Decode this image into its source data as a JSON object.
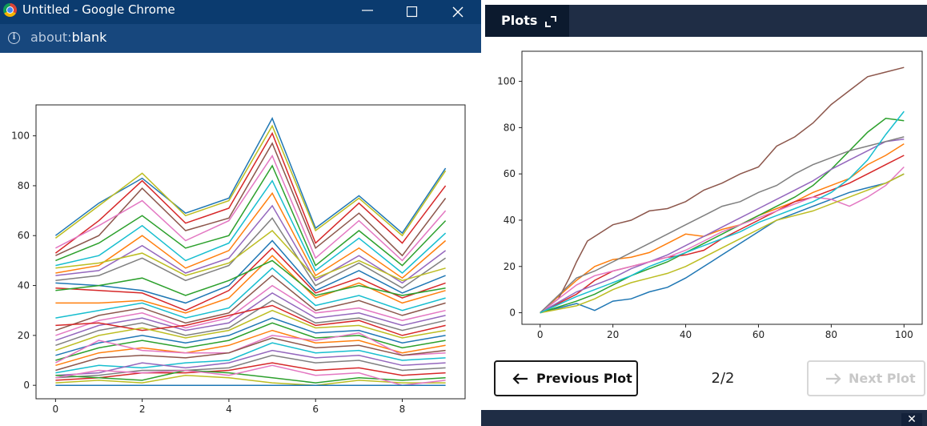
{
  "browser": {
    "window_title": "Untitled - Google Chrome",
    "url_scheme": "about:",
    "url_path": "blank"
  },
  "plots_pane": {
    "tab_label": "Plots",
    "prev_button_label": "Previous Plot",
    "next_button_label": "Next Plot",
    "pager": "2/2"
  },
  "chart_data": [
    {
      "type": "line",
      "title": "",
      "xlabel": "",
      "ylabel": "",
      "x": [
        0,
        1,
        2,
        3,
        4,
        5,
        6,
        7,
        8,
        9
      ],
      "xlim": [
        -0.45,
        9.45
      ],
      "ylim": [
        -5.4,
        112.4
      ],
      "xticks": [
        0,
        2,
        4,
        6,
        8
      ],
      "yticks": [
        0,
        20,
        40,
        60,
        80,
        100
      ],
      "grid": false,
      "legend": false,
      "series_count_note": "many overlapping series; representative subset captured",
      "series": [
        {
          "color": "#1f77b4",
          "values": [
            60,
            73,
            83,
            69,
            75,
            107,
            63,
            76,
            61,
            87
          ]
        },
        {
          "color": "#bcbd22",
          "values": [
            59,
            72,
            85,
            68,
            74,
            104,
            62,
            75,
            60,
            86
          ]
        },
        {
          "color": "#d62728",
          "values": [
            53,
            66,
            82,
            65,
            71,
            101,
            57,
            73,
            57,
            80
          ]
        },
        {
          "color": "#8c564b",
          "values": [
            52,
            60,
            79,
            62,
            67,
            97,
            55,
            69,
            52,
            75
          ]
        },
        {
          "color": "#e377c2",
          "values": [
            55,
            64,
            74,
            58,
            66,
            92,
            51,
            66,
            50,
            70
          ]
        },
        {
          "color": "#2ca02c",
          "values": [
            50,
            57,
            68,
            55,
            60,
            88,
            48,
            62,
            48,
            66
          ]
        },
        {
          "color": "#17becf",
          "values": [
            48,
            52,
            64,
            50,
            57,
            82,
            46,
            59,
            45,
            61
          ]
        },
        {
          "color": "#ff7f0e",
          "values": [
            45,
            48,
            60,
            47,
            54,
            77,
            44,
            55,
            43,
            58
          ]
        },
        {
          "color": "#9467bd",
          "values": [
            44,
            46,
            56,
            45,
            51,
            72,
            42,
            52,
            41,
            54
          ]
        },
        {
          "color": "#7f7f7f",
          "values": [
            42,
            44,
            51,
            42,
            48,
            67,
            40,
            49,
            39,
            51
          ]
        },
        {
          "color": "#bcbd22",
          "values": [
            47,
            49,
            53,
            44,
            49,
            62,
            43,
            50,
            42,
            47
          ]
        },
        {
          "color": "#1f77b4",
          "values": [
            41,
            40,
            38,
            33,
            40,
            58,
            38,
            46,
            37,
            44
          ]
        },
        {
          "color": "#d62728",
          "values": [
            39,
            38,
            37,
            30,
            38,
            55,
            37,
            43,
            35,
            41
          ]
        },
        {
          "color": "#ff7f0e",
          "values": [
            33,
            33,
            34,
            29,
            35,
            52,
            35,
            41,
            33,
            38
          ]
        },
        {
          "color": "#2ca02c",
          "values": [
            38,
            40,
            43,
            36,
            42,
            50,
            36,
            40,
            36,
            39
          ]
        },
        {
          "color": "#17becf",
          "values": [
            27,
            30,
            33,
            27,
            31,
            47,
            32,
            36,
            30,
            35
          ]
        },
        {
          "color": "#8c564b",
          "values": [
            22,
            28,
            31,
            25,
            29,
            44,
            30,
            34,
            28,
            33
          ]
        },
        {
          "color": "#e377c2",
          "values": [
            20,
            26,
            29,
            23,
            27,
            40,
            29,
            31,
            26,
            30
          ]
        },
        {
          "color": "#9467bd",
          "values": [
            18,
            24,
            27,
            22,
            25,
            37,
            27,
            29,
            24,
            28
          ]
        },
        {
          "color": "#7f7f7f",
          "values": [
            16,
            22,
            25,
            20,
            23,
            34,
            25,
            27,
            22,
            26
          ]
        },
        {
          "color": "#d62728",
          "values": [
            24,
            25,
            22,
            24,
            28,
            32,
            24,
            26,
            20,
            24
          ]
        },
        {
          "color": "#bcbd22",
          "values": [
            14,
            20,
            23,
            19,
            22,
            30,
            23,
            24,
            19,
            22
          ]
        },
        {
          "color": "#1f77b4",
          "values": [
            12,
            17,
            20,
            17,
            20,
            27,
            21,
            22,
            17,
            20
          ]
        },
        {
          "color": "#2ca02c",
          "values": [
            10,
            15,
            18,
            15,
            18,
            25,
            19,
            20,
            15,
            18
          ]
        },
        {
          "color": "#ff7f0e",
          "values": [
            8,
            13,
            15,
            13,
            16,
            22,
            17,
            18,
            13,
            16
          ]
        },
        {
          "color": "#e377c2",
          "values": [
            9,
            18,
            14,
            13,
            13,
            20,
            18,
            21,
            12,
            13
          ]
        },
        {
          "color": "#8c564b",
          "values": [
            6,
            11,
            12,
            11,
            13,
            19,
            15,
            16,
            12,
            14
          ]
        },
        {
          "color": "#17becf",
          "values": [
            5,
            8,
            7,
            9,
            10,
            17,
            13,
            14,
            10,
            11
          ]
        },
        {
          "color": "#9467bd",
          "values": [
            4,
            5,
            9,
            7,
            9,
            14,
            11,
            12,
            8,
            9
          ]
        },
        {
          "color": "#7f7f7f",
          "values": [
            3,
            4,
            6,
            6,
            7,
            12,
            9,
            10,
            6,
            7
          ]
        },
        {
          "color": "#d62728",
          "values": [
            2,
            3,
            5,
            5,
            6,
            9,
            6,
            7,
            4,
            5
          ]
        },
        {
          "color": "#2ca02c",
          "values": [
            4,
            3,
            2,
            6,
            5,
            3,
            1,
            3,
            2,
            3
          ]
        },
        {
          "color": "#bcbd22",
          "values": [
            1,
            2,
            1,
            4,
            3,
            1,
            0,
            2,
            1,
            1
          ]
        },
        {
          "color": "#e377c2",
          "values": [
            3,
            6,
            5,
            6,
            4,
            8,
            4,
            5,
            0,
            2
          ]
        },
        {
          "color": "#1f77b4",
          "values": [
            0,
            0,
            0,
            0,
            0,
            0,
            0,
            0,
            0,
            0
          ]
        }
      ]
    },
    {
      "type": "line",
      "title": "",
      "xlabel": "",
      "ylabel": "",
      "xlim": [
        -5,
        105
      ],
      "ylim": [
        -5,
        113
      ],
      "xticks": [
        0,
        20,
        40,
        60,
        80,
        100
      ],
      "yticks": [
        0,
        20,
        40,
        60,
        80,
        100
      ],
      "grid": false,
      "legend": false,
      "series": [
        {
          "color": "#1f77b4",
          "x": [
            0,
            10,
            15,
            20,
            25,
            30,
            35,
            40,
            45,
            50,
            55,
            60,
            65,
            70,
            75,
            80,
            85,
            90,
            95,
            100
          ],
          "values": [
            0,
            4,
            1,
            5,
            6,
            9,
            11,
            15,
            20,
            25,
            30,
            35,
            40,
            43,
            46,
            49,
            52,
            54,
            56,
            60
          ]
        },
        {
          "color": "#ff7f0e",
          "x": [
            0,
            10,
            15,
            20,
            25,
            30,
            35,
            40,
            45,
            50,
            55,
            60,
            65,
            70,
            75,
            80,
            85,
            90,
            95,
            100
          ],
          "values": [
            0,
            14,
            20,
            23,
            24,
            26,
            30,
            34,
            33,
            36,
            38,
            42,
            45,
            48,
            52,
            55,
            58,
            64,
            68,
            73
          ]
        },
        {
          "color": "#2ca02c",
          "x": [
            0,
            10,
            15,
            20,
            25,
            30,
            35,
            40,
            45,
            50,
            55,
            60,
            65,
            70,
            75,
            80,
            85,
            90,
            95,
            100
          ],
          "values": [
            0,
            5,
            8,
            12,
            16,
            19,
            22,
            26,
            30,
            34,
            38,
            42,
            46,
            50,
            55,
            62,
            70,
            78,
            84,
            83
          ]
        },
        {
          "color": "#d62728",
          "x": [
            0,
            10,
            15,
            20,
            25,
            30,
            35,
            40,
            45,
            50,
            55,
            60,
            65,
            70,
            75,
            80,
            85,
            90,
            95,
            100
          ],
          "values": [
            0,
            8,
            14,
            18,
            20,
            22,
            24,
            25,
            27,
            32,
            36,
            40,
            44,
            48,
            50,
            53,
            56,
            60,
            64,
            68
          ]
        },
        {
          "color": "#9467bd",
          "x": [
            0,
            10,
            15,
            20,
            25,
            30,
            35,
            40,
            45,
            50,
            55,
            60,
            65,
            70,
            75,
            80,
            85,
            90,
            95,
            100
          ],
          "values": [
            0,
            9,
            12,
            15,
            19,
            22,
            25,
            29,
            33,
            37,
            41,
            45,
            49,
            53,
            57,
            62,
            66,
            70,
            74,
            75
          ]
        },
        {
          "color": "#8c564b",
          "x": [
            0,
            5,
            8,
            10,
            13,
            15,
            20,
            25,
            30,
            35,
            40,
            45,
            50,
            55,
            60,
            65,
            70,
            75,
            80,
            85,
            90,
            95,
            100
          ],
          "values": [
            0,
            6,
            15,
            22,
            31,
            33,
            38,
            40,
            44,
            45,
            48,
            53,
            56,
            60,
            63,
            72,
            76,
            82,
            90,
            96,
            102,
            104,
            106
          ]
        },
        {
          "color": "#e377c2",
          "x": [
            0,
            10,
            15,
            20,
            25,
            30,
            35,
            40,
            45,
            50,
            55,
            60,
            65,
            70,
            75,
            80,
            85,
            90,
            95,
            100
          ],
          "values": [
            0,
            12,
            16,
            18,
            20,
            22,
            24,
            27,
            31,
            35,
            38,
            41,
            44,
            47,
            50,
            49,
            46,
            50,
            55,
            63
          ]
        },
        {
          "color": "#7f7f7f",
          "x": [
            0,
            10,
            15,
            20,
            25,
            30,
            35,
            40,
            45,
            50,
            55,
            60,
            65,
            70,
            75,
            80,
            85,
            90,
            95,
            100
          ],
          "values": [
            0,
            15,
            18,
            22,
            26,
            30,
            34,
            38,
            42,
            46,
            48,
            52,
            55,
            60,
            64,
            67,
            70,
            72,
            74,
            76
          ]
        },
        {
          "color": "#bcbd22",
          "x": [
            0,
            10,
            15,
            20,
            25,
            30,
            35,
            40,
            45,
            50,
            55,
            60,
            65,
            70,
            75,
            80,
            85,
            90,
            95,
            100
          ],
          "values": [
            0,
            3,
            6,
            10,
            13,
            15,
            17,
            20,
            24,
            28,
            32,
            36,
            40,
            42,
            44,
            47,
            50,
            53,
            56,
            60
          ]
        },
        {
          "color": "#17becf",
          "x": [
            0,
            10,
            15,
            20,
            25,
            30,
            35,
            40,
            45,
            50,
            55,
            60,
            65,
            70,
            75,
            80,
            85,
            90,
            95,
            100
          ],
          "values": [
            0,
            7,
            10,
            13,
            16,
            20,
            23,
            26,
            29,
            32,
            35,
            39,
            42,
            45,
            48,
            52,
            58,
            66,
            77,
            87
          ]
        }
      ]
    }
  ]
}
